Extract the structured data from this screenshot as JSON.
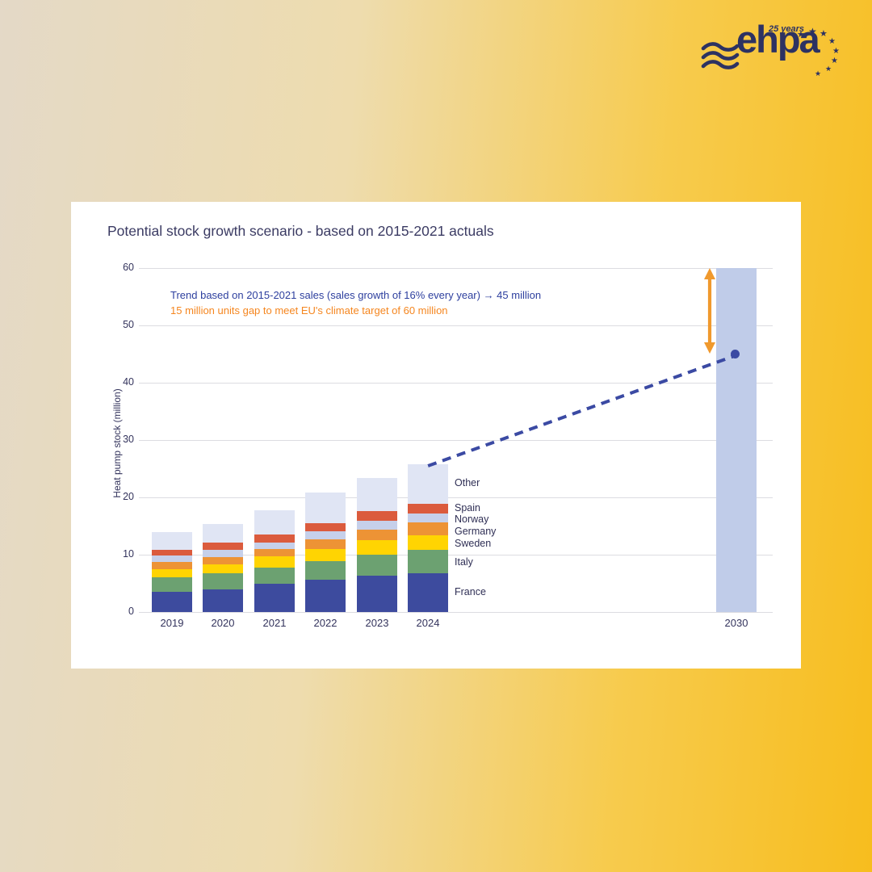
{
  "logo": {
    "name": "ehpa",
    "badge": "25 years"
  },
  "icons": {
    "star": "★"
  },
  "card": {
    "title": "Potential stock growth scenario - based on 2015-2021 actuals",
    "annotation_trend": "Trend based on 2015-2021 sales (sales growth of 16% every year) → 45 million",
    "annotation_gap": "15 million units gap to meet EU's climate target of 60 million"
  },
  "chart_data": {
    "type": "bar",
    "stacked": true,
    "title": "Potential stock growth scenario - based on 2015-2021 actuals",
    "xlabel": "",
    "ylabel": "Heat pump stock (million)",
    "ylim": [
      0,
      60
    ],
    "yticks": [
      0,
      10,
      20,
      30,
      40,
      50,
      60
    ],
    "grid": "horizontal",
    "legend_position": "right-of-last-bar",
    "categories": [
      "2019",
      "2020",
      "2021",
      "2022",
      "2023",
      "2024"
    ],
    "series": [
      {
        "name": "France",
        "color": "#3d4b9e",
        "values": [
          3.5,
          4.0,
          4.9,
          5.6,
          6.3,
          6.8
        ]
      },
      {
        "name": "Italy",
        "color": "#6ca171",
        "values": [
          2.6,
          2.7,
          2.8,
          3.3,
          3.7,
          4.0
        ]
      },
      {
        "name": "Sweden",
        "color": "#ffd402",
        "values": [
          1.4,
          1.6,
          2.0,
          2.1,
          2.6,
          2.6
        ]
      },
      {
        "name": "Germany",
        "color": "#ed9335",
        "values": [
          1.3,
          1.3,
          1.3,
          1.7,
          1.8,
          2.2
        ]
      },
      {
        "name": "Norway",
        "color": "#c6d0ea",
        "values": [
          1.1,
          1.3,
          1.1,
          1.4,
          1.5,
          1.6
        ]
      },
      {
        "name": "Spain",
        "color": "#db5b3d",
        "values": [
          1.0,
          1.2,
          1.4,
          1.4,
          1.7,
          1.7
        ]
      },
      {
        "name": "Other",
        "color": "#e0e5f4",
        "values": [
          3.0,
          3.3,
          4.2,
          5.3,
          5.8,
          6.9
        ]
      }
    ],
    "totals": [
      13.9,
      15.4,
      17.7,
      20.8,
      23.4,
      25.8
    ],
    "projection": {
      "category": "2030",
      "target_value": 60,
      "bar_color": "#c0cce9",
      "trend_value": 45,
      "gap_value": 15,
      "trend_color": "#3b4aa3",
      "arrow_color": "#f0992d"
    }
  }
}
